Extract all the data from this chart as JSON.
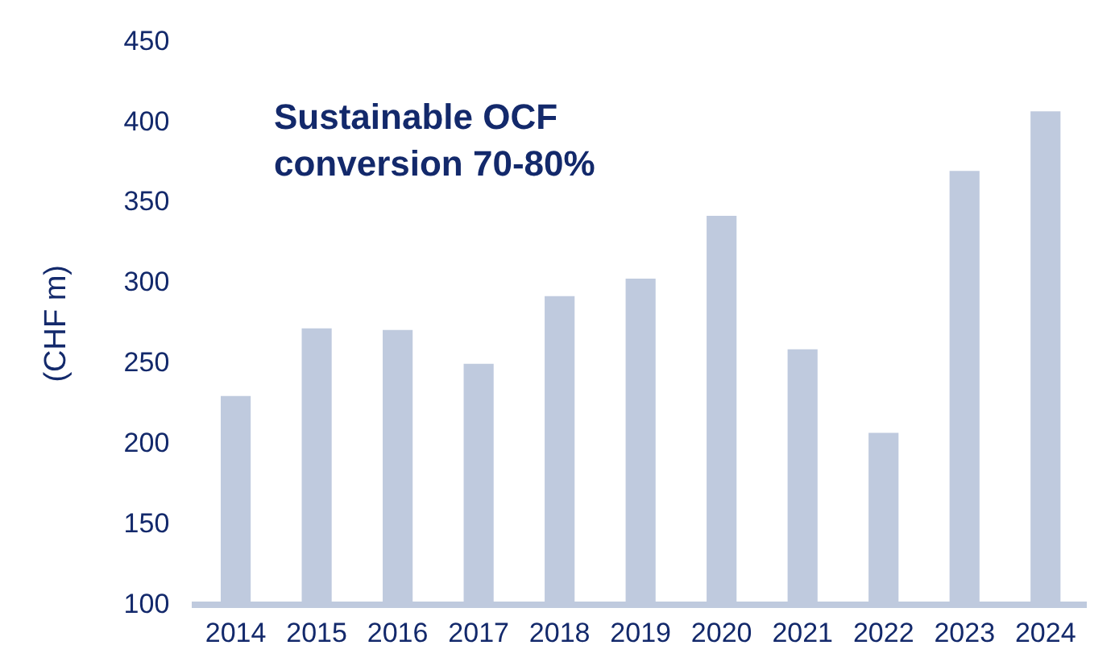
{
  "chart_data": {
    "type": "bar",
    "ylabel": "(CHF m)",
    "categories": [
      "2014",
      "2015",
      "2016",
      "2017",
      "2018",
      "2019",
      "2020",
      "2021",
      "2022",
      "2023",
      "2024"
    ],
    "values": [
      230,
      272,
      271,
      250,
      292,
      303,
      342,
      259,
      207,
      370,
      407
    ],
    "color": "#bfcade",
    "ylim": [
      100,
      450
    ],
    "yticks": [
      100,
      150,
      200,
      250,
      300,
      350,
      400,
      450
    ],
    "grid": false,
    "legend": false,
    "annotations": [
      "Sustainable OCF\nconversion 70-80%"
    ]
  }
}
